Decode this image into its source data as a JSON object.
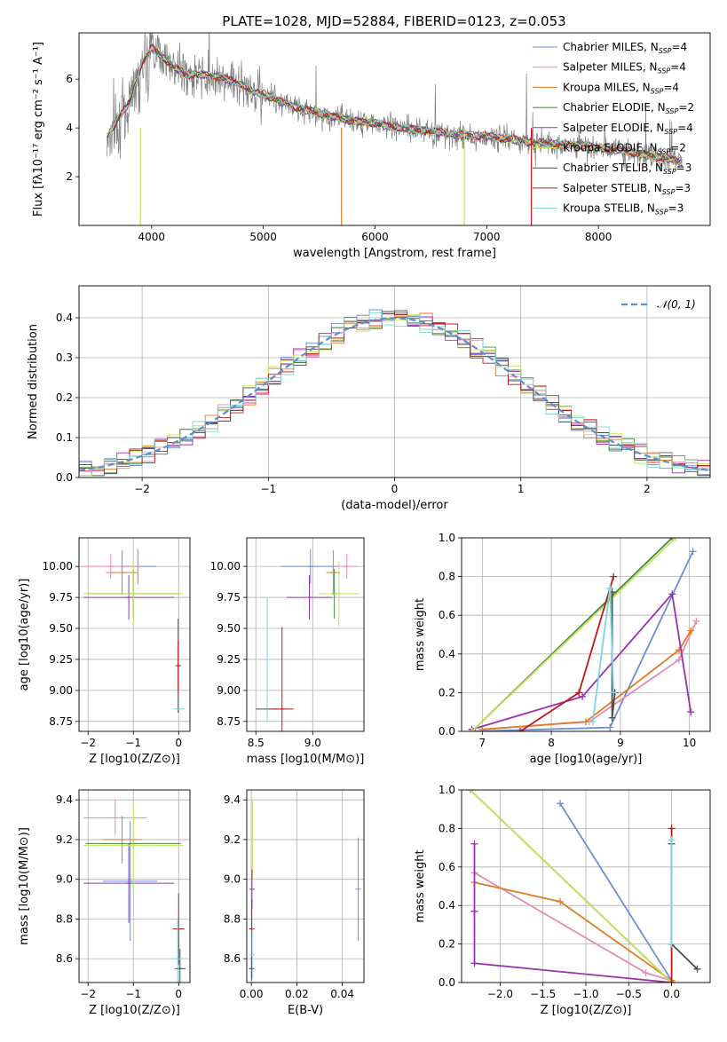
{
  "figure_title": "PLATE=1028, MJD=52884, FIBERID=0123, z=0.053",
  "colors": {
    "chabrier_miles": "#6a8fd8",
    "salpeter_miles": "#e88ab8",
    "kroupa_miles": "#e07c24",
    "chabrier_elodie": "#3f8a3f",
    "salpeter_elodie": "#9b30b0",
    "kroupa_elodie": "#c9e05a",
    "chabrier_stelib": "#4d4d4d",
    "salpeter_stelib": "#c01818",
    "kroupa_stelib": "#7cd8d8",
    "data_gray": "#808080",
    "normal": "#5b8fd0"
  },
  "series_names": [
    {
      "key": "chabrier_miles",
      "pre": "Chabrier MILES, N",
      "sub": "SSP",
      "post": "=4"
    },
    {
      "key": "salpeter_miles",
      "pre": "Salpeter MILES, N",
      "sub": "SSP",
      "post": "=4"
    },
    {
      "key": "kroupa_miles",
      "pre": "Kroupa MILES, N",
      "sub": "SSP",
      "post": "=4"
    },
    {
      "key": "chabrier_elodie",
      "pre": "Chabrier ELODIE, N",
      "sub": "SSP",
      "post": "=2"
    },
    {
      "key": "salpeter_elodie",
      "pre": "Salpeter ELODIE, N",
      "sub": "SSP",
      "post": "=4"
    },
    {
      "key": "kroupa_elodie",
      "pre": "Kroupa ELODIE, N",
      "sub": "SSP",
      "post": "=2"
    },
    {
      "key": "chabrier_stelib",
      "pre": "Chabrier STELIB, N",
      "sub": "SSP",
      "post": "=3"
    },
    {
      "key": "salpeter_stelib",
      "pre": "Salpeter STELIB, N",
      "sub": "SSP",
      "post": "=3"
    },
    {
      "key": "kroupa_stelib",
      "pre": "Kroupa STELIB, N",
      "sub": "SSP",
      "post": "=3"
    }
  ],
  "chart_data": [
    {
      "id": "spectrum",
      "type": "line",
      "xlabel": "wavelength [Angstrom, rest frame]",
      "ylabel": "Flux [fλ10⁻¹⁷ erg cm⁻² s⁻¹ A⁻¹]",
      "xlim": [
        3350,
        9000
      ],
      "ylim": [
        0,
        7.9
      ],
      "xticks": [
        4000,
        5000,
        6000,
        7000,
        8000
      ],
      "yticks": [
        2,
        4,
        6
      ],
      "legend": "upper right",
      "model_continuum": {
        "x": [
          3600,
          3700,
          3800,
          3900,
          4000,
          4100,
          4200,
          4300,
          4400,
          4600,
          4800,
          4900,
          5000,
          5200,
          5400,
          5600,
          5800,
          6000,
          6200,
          6400,
          6600,
          6800,
          7000,
          7200,
          7400,
          7600,
          7800,
          8000,
          8200,
          8400,
          8600,
          8750
        ],
        "y": [
          3.6,
          4.4,
          5.0,
          6.5,
          7.3,
          6.9,
          6.5,
          6.2,
          6.2,
          6.1,
          5.8,
          5.5,
          5.4,
          5.0,
          4.7,
          4.5,
          4.3,
          4.2,
          4.0,
          3.9,
          3.8,
          3.7,
          3.65,
          3.55,
          3.4,
          3.35,
          3.3,
          3.2,
          3.1,
          2.9,
          2.75,
          2.6
        ]
      },
      "data_noise": 0.9
    },
    {
      "id": "residuals",
      "type": "histogram",
      "xlabel": "(data-model)/error",
      "ylabel": "Normed distribution",
      "xlim": [
        -2.5,
        2.5
      ],
      "ylim": [
        0,
        0.48
      ],
      "xticks": [
        -2,
        -1,
        0,
        1,
        2
      ],
      "yticks": [
        0.0,
        0.1,
        0.2,
        0.3,
        0.4
      ],
      "bin_width": 0.1,
      "legend_label": "𝒩(0, 1)",
      "legend": "upper right"
    },
    {
      "id": "age_vs_Z",
      "type": "errorbar",
      "xlabel": "Z [log10(Z/Z⊙)]",
      "ylabel": "age  [log10(age/yr)]",
      "xlim": [
        -2.2,
        0.25
      ],
      "ylim": [
        8.67,
        10.23
      ],
      "xticks": [
        -2,
        -1,
        0
      ],
      "yticks": [
        8.75,
        9.0,
        9.25,
        9.5,
        9.75,
        10.0
      ],
      "points": [
        {
          "s": "chabrier_miles",
          "x": -0.9,
          "xe": 0.4,
          "y": 10.0,
          "ye": 0.14
        },
        {
          "s": "salpeter_miles",
          "x": -1.5,
          "xe": 0.65,
          "y": 10.0,
          "ye": 0.1
        },
        {
          "s": "kroupa_miles",
          "x": -1.25,
          "xe": 0.35,
          "y": 9.95,
          "ye": 0.18
        },
        {
          "s": "chabrier_elodie",
          "x": -1.0,
          "xe": 1.0,
          "y": 9.78,
          "ye": 0.2
        },
        {
          "s": "salpeter_elodie",
          "x": -1.1,
          "xe": 1.0,
          "y": 9.75,
          "ye": 0.18
        },
        {
          "s": "kroupa_elodie",
          "x": -1.0,
          "xe": 1.1,
          "y": 9.78,
          "ye": 0.26
        },
        {
          "s": "chabrier_stelib",
          "x": -0.01,
          "xe": 0.02,
          "y": 9.2,
          "ye": 0.38
        },
        {
          "s": "salpeter_stelib",
          "x": -0.01,
          "xe": 0.01,
          "y": 9.2,
          "ye": 0.2
        },
        {
          "s": "kroupa_stelib",
          "x": 0.0,
          "xe": 0.13,
          "y": 8.85,
          "ye": 0.0
        }
      ]
    },
    {
      "id": "age_vs_mass",
      "type": "errorbar",
      "xlabel": "mass [log10(M/M⊙)]",
      "ylabel": "",
      "xlim": [
        8.42,
        9.45
      ],
      "ylim": [
        8.67,
        10.23
      ],
      "xticks": [
        8.5,
        9.0
      ],
      "yticks": [
        8.75,
        9.0,
        9.25,
        9.5,
        9.75,
        10.0
      ],
      "points": [
        {
          "s": "chabrier_miles",
          "x": 8.98,
          "xe": 0.26,
          "y": 10.0,
          "ye": 0.14
        },
        {
          "s": "salpeter_miles",
          "x": 9.3,
          "xe": 0.09,
          "y": 10.0,
          "ye": 0.1
        },
        {
          "s": "kroupa_miles",
          "x": 9.18,
          "xe": 0.06,
          "y": 9.95,
          "ye": 0.18
        },
        {
          "s": "chabrier_elodie",
          "x": 9.19,
          "xe": 0.02,
          "y": 9.78,
          "ye": 0.2
        },
        {
          "s": "salpeter_elodie",
          "x": 8.97,
          "xe": 0.2,
          "y": 9.75,
          "ye": 0.18
        },
        {
          "s": "kroupa_elodie",
          "x": 9.23,
          "xe": 0.18,
          "y": 9.78,
          "ye": 0.26
        },
        {
          "s": "chabrier_stelib",
          "x": 8.6,
          "xe": 0.1,
          "y": 8.85,
          "ye": 0.0
        },
        {
          "s": "salpeter_stelib",
          "x": 8.73,
          "xe": 0.1,
          "y": 8.85,
          "ye": 0.66
        },
        {
          "s": "kroupa_stelib",
          "x": 8.6,
          "xe": 0.0,
          "y": 9.25,
          "ye": 0.5
        }
      ]
    },
    {
      "id": "weight_vs_age",
      "type": "line",
      "xlabel": "age  [log10(age/yr)]",
      "ylabel": "mass weight",
      "xlim": [
        6.7,
        10.3
      ],
      "ylim": [
        0,
        1.0
      ],
      "xticks": [
        7,
        8,
        9,
        10
      ],
      "yticks": [
        0.0,
        0.2,
        0.4,
        0.6,
        0.8,
        1.0
      ],
      "lines": [
        {
          "s": "chabrier_miles",
          "x": [
            6.9,
            8.85,
            10.05
          ],
          "y": [
            0.0,
            0.02,
            0.93
          ]
        },
        {
          "s": "salpeter_miles",
          "x": [
            7.0,
            8.55,
            9.85,
            10.1
          ],
          "y": [
            0.01,
            0.05,
            0.37,
            0.57
          ]
        },
        {
          "s": "kroupa_miles",
          "x": [
            7.0,
            8.5,
            9.85,
            10.02
          ],
          "y": [
            0.01,
            0.05,
            0.42,
            0.52
          ]
        },
        {
          "s": "chabrier_elodie",
          "x": [
            6.85,
            9.75
          ],
          "y": [
            0.0,
            1.0
          ]
        },
        {
          "s": "salpeter_elodie",
          "x": [
            6.85,
            8.45,
            9.75,
            10.02
          ],
          "y": [
            0.01,
            0.18,
            0.71,
            0.1
          ]
        },
        {
          "s": "kroupa_elodie",
          "x": [
            6.85,
            9.8
          ],
          "y": [
            0.0,
            1.0
          ]
        },
        {
          "s": "chabrier_stelib",
          "x": [
            8.88,
            8.88,
            8.92
          ],
          "y": [
            0.72,
            0.07,
            0.2
          ]
        },
        {
          "s": "salpeter_stelib",
          "x": [
            7.55,
            8.4,
            8.9
          ],
          "y": [
            0.0,
            0.2,
            0.8
          ]
        },
        {
          "s": "kroupa_stelib",
          "x": [
            8.6,
            8.85,
            8.9
          ],
          "y": [
            0.05,
            0.74,
            0.2
          ]
        }
      ]
    },
    {
      "id": "mass_vs_Z",
      "type": "errorbar",
      "xlabel": "Z [log10(Z/Z⊙)]",
      "ylabel": "mass [log10(M/M⊙)]",
      "xlim": [
        -2.2,
        0.25
      ],
      "ylim": [
        8.48,
        9.45
      ],
      "xticks": [
        -2,
        -1,
        0
      ],
      "yticks": [
        8.6,
        8.8,
        9.0,
        9.2,
        9.4
      ],
      "points": [
        {
          "s": "chabrier_miles",
          "x": -1.07,
          "xe": 0.6,
          "y": 8.99,
          "ye": 0.3
        },
        {
          "s": "salpeter_miles",
          "x": -1.4,
          "xe": 0.7,
          "y": 9.31,
          "ye": 0.09
        },
        {
          "s": "kroupa_miles",
          "x": -1.25,
          "xe": 0.45,
          "y": 9.2,
          "ye": 0.12
        },
        {
          "s": "chabrier_elodie",
          "x": -1.0,
          "xe": 1.05,
          "y": 9.18,
          "ye": 0.02
        },
        {
          "s": "salpeter_elodie",
          "x": -1.1,
          "xe": 1.0,
          "y": 8.98,
          "ye": 0.2
        },
        {
          "s": "kroupa_elodie",
          "x": -1.0,
          "xe": 1.1,
          "y": 9.17,
          "ye": 0.22
        },
        {
          "s": "chabrier_stelib",
          "x": 0.03,
          "xe": 0.12,
          "y": 8.55,
          "ye": 0.1
        },
        {
          "s": "salpeter_stelib",
          "x": 0.0,
          "xe": 0.13,
          "y": 8.75,
          "ye": 0.18
        },
        {
          "s": "kroupa_stelib",
          "x": -0.02,
          "xe": 0.12,
          "y": 8.6,
          "ye": 0.2
        }
      ]
    },
    {
      "id": "mass_vs_ebv",
      "type": "errorbar",
      "xlabel": "E(B-V)",
      "ylabel": "",
      "xlim": [
        -0.002,
        0.0495
      ],
      "ylim": [
        8.48,
        9.45
      ],
      "xticks": [
        0.0,
        0.02,
        0.04
      ],
      "yticks": [
        8.6,
        8.8,
        9.0,
        9.2,
        9.4
      ],
      "points": [
        {
          "s": "chabrier_miles",
          "x": 0.047,
          "xe": 0.0,
          "y": 8.95,
          "ye": 0.26
        },
        {
          "s": "kroupa_elodie",
          "x": 0.0005,
          "xe": 0.0,
          "y": 9.2,
          "ye": 0.2
        },
        {
          "s": "salpeter_elodie",
          "x": 0.0003,
          "xe": 0.0,
          "y": 8.95,
          "ye": 0.1
        },
        {
          "s": "salpeter_stelib",
          "x": 0.0002,
          "xe": 0.0,
          "y": 8.75,
          "ye": 0.15
        },
        {
          "s": "kroupa_stelib",
          "x": 0.0004,
          "xe": 0.0,
          "y": 8.62,
          "ye": 0.12
        },
        {
          "s": "chabrier_stelib",
          "x": 0.0001,
          "xe": 0.0,
          "y": 8.55,
          "ye": 0.06
        }
      ]
    },
    {
      "id": "weight_vs_Z",
      "type": "line",
      "xlabel": "Z [log10(Z/Z⊙)]",
      "ylabel": "mass weight",
      "xlim": [
        -2.45,
        0.45
      ],
      "ylim": [
        0,
        1.0
      ],
      "xticks": [
        -2.0,
        -1.5,
        -1.0,
        -0.5,
        0.0
      ],
      "yticks": [
        0.0,
        0.2,
        0.4,
        0.6,
        0.8,
        1.0
      ],
      "lines": [
        {
          "s": "chabrier_miles",
          "x": [
            -1.3,
            0.0
          ],
          "y": [
            0.93,
            0.01
          ]
        },
        {
          "s": "salpeter_miles",
          "x": [
            -2.3,
            -0.3,
            0.0
          ],
          "y": [
            0.57,
            0.05,
            0.01
          ]
        },
        {
          "s": "kroupa_miles",
          "x": [
            -2.3,
            -1.3,
            0.0
          ],
          "y": [
            0.52,
            0.42,
            0.01
          ]
        },
        {
          "s": "chabrier_elodie",
          "x": [
            -2.35,
            0.0
          ],
          "y": [
            1.0,
            0.0
          ]
        },
        {
          "s": "salpeter_elodie",
          "x": [
            -2.3,
            -2.3,
            -2.3,
            0.0
          ],
          "y": [
            0.37,
            0.72,
            0.1,
            0.0
          ]
        },
        {
          "s": "kroupa_elodie",
          "x": [
            -2.35,
            0.0
          ],
          "y": [
            1.0,
            0.0
          ]
        },
        {
          "s": "chabrier_stelib",
          "x": [
            0.0,
            0.0,
            0.3
          ],
          "y": [
            0.72,
            0.2,
            0.07
          ]
        },
        {
          "s": "salpeter_stelib",
          "x": [
            0.0,
            0.0
          ],
          "y": [
            0.8,
            0.0
          ]
        },
        {
          "s": "kroupa_stelib",
          "x": [
            0.0,
            0.0
          ],
          "y": [
            0.74,
            0.2
          ]
        }
      ]
    }
  ]
}
